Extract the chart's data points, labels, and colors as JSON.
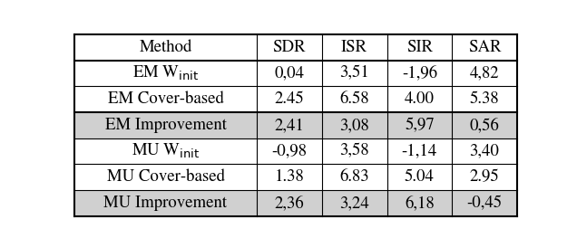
{
  "columns": [
    "Method",
    "SDR",
    "ISR",
    "SIR",
    "SAR"
  ],
  "rows": [
    {
      "label": "EM W$_{\\rm init}$",
      "values": [
        "0,04",
        "3,51",
        "-1,96",
        "4,82"
      ],
      "bg": "#ffffff",
      "bold": false
    },
    {
      "label": "EM Cover-based",
      "values": [
        "2.45",
        "6.58",
        "4.00",
        "5.38"
      ],
      "bg": "#ffffff",
      "bold": false
    },
    {
      "label": "EM Improvement",
      "values": [
        "2,41",
        "3,08",
        "5,97",
        "0,56"
      ],
      "bg": "#d0d0d0",
      "bold": false
    },
    {
      "label": "MU W$_{\\rm init}$",
      "values": [
        "-0,98",
        "3,58",
        "-1,14",
        "3,40"
      ],
      "bg": "#ffffff",
      "bold": false
    },
    {
      "label": "MU Cover-based",
      "values": [
        "1.38",
        "6.83",
        "5.04",
        "2.95"
      ],
      "bg": "#ffffff",
      "bold": false
    },
    {
      "label": "MU Improvement",
      "values": [
        "2,36",
        "3,24",
        "6,18",
        "-0,45"
      ],
      "bg": "#d0d0d0",
      "bold": false
    }
  ],
  "col_widths": [
    2.3,
    0.82,
    0.82,
    0.82,
    0.82
  ],
  "header_bg": "#ffffff",
  "font_size": 13.5,
  "border_color": "#000000",
  "lw_thick": 1.5,
  "lw_thin": 0.8,
  "fig_width": 6.36,
  "fig_height": 2.74,
  "dpi": 100
}
